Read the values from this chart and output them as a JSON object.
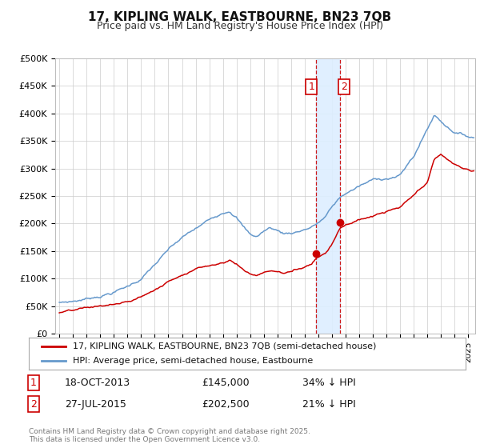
{
  "title1": "17, KIPLING WALK, EASTBOURNE, BN23 7QB",
  "title2": "Price paid vs. HM Land Registry's House Price Index (HPI)",
  "legend_label_red": "17, KIPLING WALK, EASTBOURNE, BN23 7QB (semi-detached house)",
  "legend_label_blue": "HPI: Average price, semi-detached house, Eastbourne",
  "transaction1_date": "18-OCT-2013",
  "transaction1_price": "£145,000",
  "transaction1_hpi": "34% ↓ HPI",
  "transaction1_year": 2013.8,
  "transaction1_value": 145000,
  "transaction2_date": "27-JUL-2015",
  "transaction2_price": "£202,500",
  "transaction2_hpi": "21% ↓ HPI",
  "transaction2_year": 2015.56,
  "transaction2_value": 202500,
  "footer": "Contains HM Land Registry data © Crown copyright and database right 2025.\nThis data is licensed under the Open Government Licence v3.0.",
  "background_color": "#ffffff",
  "grid_color": "#cccccc",
  "red_color": "#cc0000",
  "blue_color": "#6699cc",
  "shade_color": "#ddeeff",
  "ylim": [
    0,
    500000
  ],
  "yticks": [
    0,
    50000,
    100000,
    150000,
    200000,
    250000,
    300000,
    350000,
    400000,
    450000,
    500000
  ],
  "ytick_labels": [
    "£0",
    "£50K",
    "£100K",
    "£150K",
    "£200K",
    "£250K",
    "£300K",
    "£350K",
    "£400K",
    "£450K",
    "£500K"
  ],
  "xlim_start": 1994.7,
  "xlim_end": 2025.5
}
